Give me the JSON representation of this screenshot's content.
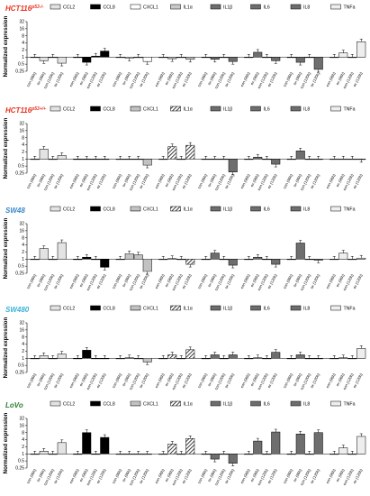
{
  "chart_data": [
    {
      "type": "bar",
      "title": "HCT116",
      "title_superscript": "p53-/-",
      "title_color": "#e8321e",
      "ylabel": "Normalized expression",
      "yscale": "log2",
      "ylim": [
        0.25,
        32
      ],
      "yticks": [
        "0.25",
        "0.5",
        "1",
        "2",
        "4",
        "8",
        "16",
        "32"
      ],
      "legend_placement": "top",
      "categories": [
        "con (96h)",
        "ox (96h)",
        "con (120h)",
        "ox (120h)"
      ],
      "series": [
        {
          "name": "CCL2",
          "values": [
            1.0,
            0.7,
            1.0,
            0.55
          ]
        },
        {
          "name": "CCL8",
          "values": [
            1.0,
            0.6,
            1.1,
            1.8
          ]
        },
        {
          "name": "CXCL1",
          "values": [
            1.0,
            0.9,
            1.0,
            0.65
          ]
        },
        {
          "name": "IL1α",
          "values": [
            1.0,
            0.85,
            1.0,
            0.8
          ]
        },
        {
          "name": "IL1β",
          "values": [
            1.0,
            0.8,
            1.0,
            0.65
          ]
        },
        {
          "name": "IL6",
          "values": [
            1.0,
            1.6,
            1.0,
            0.7
          ]
        },
        {
          "name": "IL8",
          "values": [
            1.0,
            0.6,
            1.0,
            0.3
          ]
        },
        {
          "name": "TNFa",
          "values": [
            1.0,
            1.5,
            1.0,
            4.5
          ]
        }
      ]
    },
    {
      "type": "bar",
      "title": "HCT116",
      "title_superscript": "p53+/+",
      "title_color": "#e8321e",
      "ylabel": "Normalized expression",
      "yscale": "log2",
      "ylim": [
        0.25,
        32
      ],
      "yticks": [
        "0.25",
        "0.5",
        "1",
        "2",
        "4",
        "8",
        "16",
        "32"
      ],
      "legend_placement": "top",
      "categories": [
        "con (96h)",
        "ox (96h)",
        "con (120h)",
        "ox (120h)"
      ],
      "series": [
        {
          "name": "CCL2",
          "values": [
            1.0,
            2.6,
            1.0,
            1.4
          ]
        },
        {
          "name": "CCL8",
          "values": [
            1.0,
            1.0,
            1.0,
            1.0
          ]
        },
        {
          "name": "CXCL1",
          "values": [
            1.0,
            1.0,
            1.0,
            0.55
          ]
        },
        {
          "name": "IL1α",
          "values": [
            1.0,
            3.3,
            1.0,
            3.8
          ]
        },
        {
          "name": "IL1β",
          "values": [
            1.0,
            1.0,
            1.0,
            0.28
          ]
        },
        {
          "name": "IL6",
          "values": [
            1.0,
            1.2,
            1.0,
            0.6
          ]
        },
        {
          "name": "IL8",
          "values": [
            1.0,
            2.2,
            1.0,
            1.0
          ]
        },
        {
          "name": "TNFa",
          "values": [
            1.0,
            1.0,
            1.0,
            0.95
          ]
        }
      ]
    },
    {
      "type": "bar",
      "title": "SW48",
      "title_superscript": "",
      "title_color": "#3a88c8",
      "ylabel": "Normalized expression",
      "yscale": "log2",
      "ylim": [
        0.25,
        32
      ],
      "yticks": [
        "0.25",
        "0.5",
        "1",
        "2",
        "4",
        "8",
        "16",
        "32"
      ],
      "legend_placement": "top",
      "categories": [
        "con (96h)",
        "ox (96h)",
        "con (120h)",
        "ox (120h)"
      ],
      "series": [
        {
          "name": "CCL2",
          "values": [
            1.0,
            2.8,
            1.0,
            5.0
          ]
        },
        {
          "name": "CCL8",
          "values": [
            1.0,
            1.2,
            1.0,
            0.45
          ]
        },
        {
          "name": "CXCL1",
          "values": [
            1.0,
            1.7,
            1.5,
            0.3
          ]
        },
        {
          "name": "IL1α",
          "values": [
            1.0,
            1.05,
            1.0,
            0.6
          ]
        },
        {
          "name": "IL1β",
          "values": [
            1.0,
            1.8,
            1.0,
            0.55
          ]
        },
        {
          "name": "IL6",
          "values": [
            1.0,
            1.2,
            1.0,
            0.6
          ]
        },
        {
          "name": "IL8",
          "values": [
            1.0,
            4.8,
            1.0,
            0.9
          ]
        },
        {
          "name": "TNFa",
          "values": [
            1.0,
            1.8,
            1.0,
            1.1
          ]
        }
      ]
    },
    {
      "type": "bar",
      "title": "SW480",
      "title_superscript": "",
      "title_color": "#3ab2d8",
      "ylabel": "Normalized expression",
      "yscale": "log2",
      "ylim": [
        0.25,
        32
      ],
      "yticks": [
        "0.25",
        "0.5",
        "1",
        "2",
        "4",
        "8",
        "16",
        "32"
      ],
      "legend_placement": "top",
      "categories": [
        "con (96h)",
        "ox (96h)",
        "con (120h)",
        "ox (120h)"
      ],
      "series": [
        {
          "name": "CCL2",
          "values": [
            1.0,
            1.3,
            1.0,
            1.5
          ]
        },
        {
          "name": "CCL8",
          "values": [
            1.0,
            2.2,
            1.0,
            1.0
          ]
        },
        {
          "name": "CXCL1",
          "values": [
            1.0,
            1.05,
            1.0,
            0.7
          ]
        },
        {
          "name": "IL1α",
          "values": [
            1.0,
            1.4,
            1.0,
            2.3
          ]
        },
        {
          "name": "IL1β",
          "values": [
            1.0,
            1.4,
            1.0,
            1.4
          ]
        },
        {
          "name": "IL6",
          "values": [
            1.0,
            1.05,
            1.0,
            1.8
          ]
        },
        {
          "name": "IL8",
          "values": [
            1.0,
            1.4,
            1.0,
            1.0
          ]
        },
        {
          "name": "TNFa",
          "values": [
            1.0,
            1.05,
            1.0,
            2.6
          ]
        }
      ]
    },
    {
      "type": "bar",
      "title": "LoVo",
      "title_superscript": "",
      "title_color": "#2a7d32",
      "ylabel": "Normalized expression",
      "yscale": "log2",
      "ylim": [
        0.25,
        32
      ],
      "yticks": [
        "0.25",
        "0.5",
        "1",
        "2",
        "4",
        "8",
        "16",
        "32"
      ],
      "legend_placement": "top",
      "categories": [
        "con (96h)",
        "ox (96h)",
        "con (120h)",
        "ox (120h)"
      ],
      "series": [
        {
          "name": "CCL2",
          "values": [
            1.0,
            1.3,
            1.0,
            3.0
          ]
        },
        {
          "name": "CCL8",
          "values": [
            1.0,
            8.0,
            1.0,
            5.0
          ]
        },
        {
          "name": "CXCL1",
          "values": [
            1.0,
            1.0,
            1.0,
            1.0
          ]
        },
        {
          "name": "IL1α",
          "values": [
            1.0,
            2.6,
            1.0,
            4.5
          ]
        },
        {
          "name": "IL1β",
          "values": [
            1.0,
            0.6,
            1.0,
            0.4
          ]
        },
        {
          "name": "IL6",
          "values": [
            1.0,
            3.5,
            1.0,
            8.5
          ]
        },
        {
          "name": "IL8",
          "values": [
            1.0,
            7.0,
            1.0,
            8.0
          ]
        },
        {
          "name": "TNFa",
          "values": [
            1.0,
            1.8,
            1.0,
            5.5
          ]
        }
      ]
    }
  ],
  "legend": [
    {
      "label": "CCL2",
      "pattern": "solid",
      "color": "#e3e3e3"
    },
    {
      "label": "CCL8",
      "pattern": "solid",
      "color": "#000000"
    },
    {
      "label": "CXCL1",
      "pattern": "solid",
      "color": "#ffffff"
    },
    {
      "label": "IL1α",
      "pattern": "solid",
      "color": "#c9c9c9"
    },
    {
      "label": "IL1β",
      "pattern": "solid",
      "color": "#6e6e6e"
    },
    {
      "label": "IL6",
      "pattern": "solid",
      "color": "#6e6e6e"
    },
    {
      "label": "IL8",
      "pattern": "solid",
      "color": "#6e6e6e"
    },
    {
      "label": "TNFa",
      "pattern": "solid",
      "color": "#eeeeee"
    }
  ],
  "panel_styles": [
    {
      "CCL2": "solid",
      "CCL8": "solid",
      "CXCL1": "solid",
      "IL1α": "solid",
      "IL1β": "solid",
      "IL6": "solid",
      "IL8": "solid",
      "TNFa": "solid"
    },
    {
      "CCL2": "solid",
      "CCL8": "solid",
      "CXCL1": "hlines",
      "IL1α": "diag",
      "IL1β": "solid",
      "IL6": "solid",
      "IL8": "solid",
      "TNFa": "solid"
    },
    {
      "CCL2": "solid",
      "CCL8": "solid",
      "CXCL1": "hlines",
      "IL1α": "diag",
      "IL1β": "solid",
      "IL6": "solid",
      "IL8": "solid",
      "TNFa": "solid"
    },
    {
      "CCL2": "solid",
      "CCL8": "solid",
      "CXCL1": "hlines",
      "IL1α": "diag",
      "IL1β": "solid",
      "IL6": "solid",
      "IL8": "solid",
      "TNFa": "solid"
    },
    {
      "CCL2": "solid",
      "CCL8": "solid",
      "CXCL1": "hlines",
      "IL1α": "diag",
      "IL1β": "solid",
      "IL6": "solid",
      "IL8": "solid",
      "TNFa": "solid"
    }
  ],
  "series_colors": {
    "CCL2": "#e3e3e3",
    "CCL8": "#000000",
    "CXCL1": "#ffffff",
    "IL1α": "#c9c9c9",
    "IL1β": "#6e6e6e",
    "IL6": "#6e6e6e",
    "IL8": "#6e6e6e",
    "TNFa": "#eeeeee"
  }
}
